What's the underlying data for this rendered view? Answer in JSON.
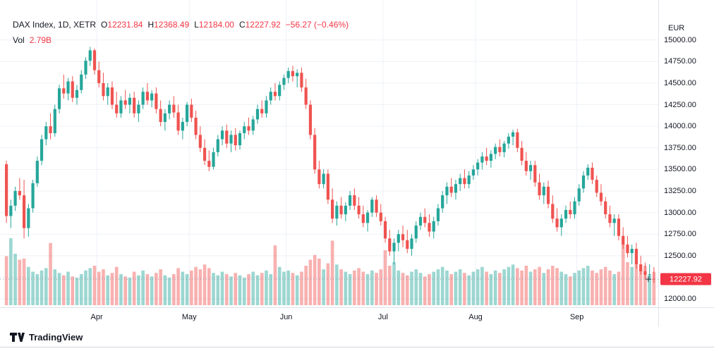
{
  "legend": {
    "title": "DAX Index, 1D, XETR",
    "o_label": "O",
    "o": "12231.84",
    "h_label": "H",
    "h": "12368.49",
    "l_label": "L",
    "l": "12184.00",
    "c_label": "C",
    "c": "12227.92",
    "change": "−56.27 (−0.46%)",
    "vol_label": "Vol",
    "vol": "2.79B"
  },
  "price_axis": {
    "currency": "EUR",
    "labels": [
      "15000.00",
      "14750.00",
      "14500.00",
      "14250.00",
      "14000.00",
      "13750.00",
      "13500.00",
      "13250.00",
      "13000.00",
      "12750.00",
      "12500.00",
      "12000.00"
    ],
    "last_price_badge": "12227.92"
  },
  "time_axis": {
    "months": [
      {
        "label": "Apr",
        "index": 21
      },
      {
        "label": "May",
        "index": 42
      },
      {
        "label": "Jun",
        "index": 64
      },
      {
        "label": "Jul",
        "index": 86
      },
      {
        "label": "Aug",
        "index": 107
      },
      {
        "label": "Sep",
        "index": 130
      }
    ]
  },
  "footer": {
    "brand": "TradingView"
  },
  "colors": {
    "up": "#26a69a",
    "down": "#ef5350",
    "text": "#131722",
    "value_red": "#f23645",
    "grid": "#eef1f7",
    "axis_border": "#e0e3eb",
    "badge_bg": "#f23645",
    "last_price_line": "#9598a1",
    "marker": "#2a2e39"
  },
  "chart_data": {
    "type": "candlestick",
    "title": "DAX Index, 1D, XETR",
    "ylabel": "EUR",
    "grid_step": 250,
    "price_range": [
      11935,
      15300
    ],
    "last_close": 12227.92,
    "last_volume_label": "2.79B",
    "ohlc": [
      [
        13560,
        13600,
        12880,
        12960
      ],
      [
        12960,
        13150,
        12820,
        13080
      ],
      [
        13080,
        13300,
        13020,
        13250
      ],
      [
        13250,
        13400,
        13150,
        13200
      ],
      [
        13200,
        13380,
        12700,
        12820
      ],
      [
        12820,
        13100,
        12720,
        13050
      ],
      [
        13050,
        13380,
        13000,
        13340
      ],
      [
        13340,
        13650,
        13300,
        13600
      ],
      [
        13600,
        13900,
        13550,
        13850
      ],
      [
        13850,
        14050,
        13780,
        14000
      ],
      [
        14000,
        14150,
        13850,
        13920
      ],
      [
        13920,
        14250,
        13880,
        14200
      ],
      [
        14200,
        14480,
        14150,
        14440
      ],
      [
        14440,
        14600,
        14320,
        14380
      ],
      [
        14380,
        14560,
        14300,
        14520
      ],
      [
        14520,
        14580,
        14280,
        14330
      ],
      [
        14330,
        14480,
        14250,
        14420
      ],
      [
        14420,
        14650,
        14380,
        14600
      ],
      [
        14600,
        14800,
        14550,
        14760
      ],
      [
        14760,
        14920,
        14700,
        14880
      ],
      [
        14880,
        14900,
        14600,
        14650
      ],
      [
        14650,
        14750,
        14450,
        14500
      ],
      [
        14500,
        14620,
        14300,
        14350
      ],
      [
        14350,
        14500,
        14250,
        14450
      ],
      [
        14450,
        14520,
        14200,
        14250
      ],
      [
        14250,
        14400,
        14100,
        14150
      ],
      [
        14150,
        14350,
        14100,
        14300
      ],
      [
        14300,
        14420,
        14200,
        14250
      ],
      [
        14250,
        14380,
        14150,
        14330
      ],
      [
        14330,
        14400,
        14100,
        14150
      ],
      [
        14150,
        14300,
        14050,
        14250
      ],
      [
        14250,
        14450,
        14200,
        14400
      ],
      [
        14400,
        14500,
        14250,
        14300
      ],
      [
        14300,
        14420,
        14220,
        14380
      ],
      [
        14380,
        14450,
        14150,
        14200
      ],
      [
        14200,
        14300,
        14000,
        14050
      ],
      [
        14050,
        14200,
        13950,
        14150
      ],
      [
        14150,
        14300,
        14080,
        14250
      ],
      [
        14250,
        14350,
        14100,
        14160
      ],
      [
        14160,
        14250,
        13900,
        13950
      ],
      [
        13950,
        14100,
        13850,
        14050
      ],
      [
        14050,
        14280,
        14000,
        14250
      ],
      [
        14250,
        14320,
        14050,
        14100
      ],
      [
        14100,
        14180,
        13850,
        13900
      ],
      [
        13900,
        14000,
        13700,
        13750
      ],
      [
        13750,
        13850,
        13550,
        13600
      ],
      [
        13600,
        13720,
        13480,
        13530
      ],
      [
        13530,
        13750,
        13500,
        13700
      ],
      [
        13700,
        13900,
        13650,
        13850
      ],
      [
        13850,
        14000,
        13780,
        13950
      ],
      [
        13950,
        14020,
        13750,
        13800
      ],
      [
        13800,
        13950,
        13700,
        13900
      ],
      [
        13900,
        13980,
        13720,
        13780
      ],
      [
        13780,
        13950,
        13730,
        13920
      ],
      [
        13920,
        14050,
        13850,
        14000
      ],
      [
        14000,
        14100,
        13900,
        13950
      ],
      [
        13950,
        14120,
        13900,
        14080
      ],
      [
        14080,
        14250,
        14030,
        14200
      ],
      [
        14200,
        14300,
        14100,
        14150
      ],
      [
        14150,
        14350,
        14100,
        14300
      ],
      [
        14300,
        14450,
        14250,
        14400
      ],
      [
        14400,
        14500,
        14300,
        14350
      ],
      [
        14350,
        14520,
        14300,
        14480
      ],
      [
        14480,
        14600,
        14420,
        14560
      ],
      [
        14560,
        14680,
        14500,
        14640
      ],
      [
        14640,
        14700,
        14520,
        14580
      ],
      [
        14580,
        14660,
        14450,
        14620
      ],
      [
        14620,
        14680,
        14400,
        14450
      ],
      [
        14450,
        14550,
        14200,
        14250
      ],
      [
        14250,
        14300,
        13850,
        13900
      ],
      [
        13900,
        13980,
        13450,
        13500
      ],
      [
        13500,
        13600,
        13280,
        13330
      ],
      [
        13330,
        13500,
        13280,
        13450
      ],
      [
        13450,
        13500,
        13100,
        13150
      ],
      [
        13150,
        13280,
        12880,
        12930
      ],
      [
        12930,
        13130,
        12850,
        13080
      ],
      [
        13080,
        13180,
        12930,
        12980
      ],
      [
        12980,
        13120,
        12900,
        13080
      ],
      [
        13080,
        13250,
        13030,
        13200
      ],
      [
        13200,
        13280,
        13030,
        13080
      ],
      [
        13080,
        13180,
        12930,
        12980
      ],
      [
        12980,
        13080,
        12830,
        12880
      ],
      [
        12880,
        13030,
        12780,
        13000
      ],
      [
        13000,
        13180,
        12950,
        13150
      ],
      [
        13150,
        13200,
        12950,
        13000
      ],
      [
        13000,
        13100,
        12850,
        12900
      ],
      [
        12900,
        12950,
        12650,
        12700
      ],
      [
        12700,
        12800,
        12500,
        12550
      ],
      [
        12550,
        12700,
        12400,
        12650
      ],
      [
        12650,
        12800,
        12550,
        12750
      ],
      [
        12750,
        12850,
        12600,
        12680
      ],
      [
        12680,
        12800,
        12530,
        12580
      ],
      [
        12580,
        12750,
        12500,
        12700
      ],
      [
        12700,
        12900,
        12650,
        12850
      ],
      [
        12850,
        13000,
        12800,
        12950
      ],
      [
        12950,
        13050,
        12830,
        12880
      ],
      [
        12880,
        12980,
        12720,
        12780
      ],
      [
        12780,
        12950,
        12700,
        12900
      ],
      [
        12900,
        13100,
        12850,
        13050
      ],
      [
        13050,
        13250,
        13000,
        13200
      ],
      [
        13200,
        13350,
        13100,
        13300
      ],
      [
        13300,
        13400,
        13180,
        13230
      ],
      [
        13230,
        13380,
        13150,
        13330
      ],
      [
        13330,
        13450,
        13250,
        13400
      ],
      [
        13400,
        13500,
        13280,
        13330
      ],
      [
        13330,
        13480,
        13280,
        13430
      ],
      [
        13430,
        13550,
        13380,
        13500
      ],
      [
        13500,
        13620,
        13430,
        13580
      ],
      [
        13580,
        13700,
        13500,
        13650
      ],
      [
        13650,
        13750,
        13550,
        13600
      ],
      [
        13600,
        13720,
        13520,
        13680
      ],
      [
        13680,
        13800,
        13620,
        13760
      ],
      [
        13760,
        13850,
        13650,
        13700
      ],
      [
        13700,
        13830,
        13640,
        13800
      ],
      [
        13800,
        13920,
        13740,
        13880
      ],
      [
        13880,
        13960,
        13780,
        13930
      ],
      [
        13930,
        13970,
        13700,
        13750
      ],
      [
        13750,
        13830,
        13550,
        13600
      ],
      [
        13600,
        13700,
        13430,
        13480
      ],
      [
        13480,
        13600,
        13380,
        13550
      ],
      [
        13550,
        13600,
        13300,
        13350
      ],
      [
        13350,
        13450,
        13150,
        13200
      ],
      [
        13200,
        13350,
        13100,
        13300
      ],
      [
        13300,
        13370,
        13050,
        13100
      ],
      [
        13100,
        13200,
        12880,
        12930
      ],
      [
        12930,
        13050,
        12780,
        12830
      ],
      [
        12830,
        12980,
        12730,
        12930
      ],
      [
        12930,
        13080,
        12880,
        13030
      ],
      [
        13030,
        13130,
        12930,
        12980
      ],
      [
        12980,
        13180,
        12930,
        13130
      ],
      [
        13130,
        13330,
        13080,
        13280
      ],
      [
        13280,
        13480,
        13230,
        13430
      ],
      [
        13430,
        13560,
        13380,
        13520
      ],
      [
        13520,
        13580,
        13330,
        13380
      ],
      [
        13380,
        13430,
        13180,
        13230
      ],
      [
        13230,
        13330,
        13080,
        13130
      ],
      [
        13130,
        13180,
        12930,
        12980
      ],
      [
        12980,
        13080,
        12830,
        12880
      ],
      [
        12880,
        12980,
        12730,
        12930
      ],
      [
        12930,
        12980,
        12680,
        12730
      ],
      [
        12730,
        12830,
        12580,
        12630
      ],
      [
        12630,
        12730,
        12480,
        12530
      ],
      [
        12530,
        12630,
        12400,
        12580
      ],
      [
        12580,
        12650,
        12350,
        12400
      ],
      [
        12400,
        12500,
        12280,
        12320
      ],
      [
        12320,
        12420,
        12230,
        12280
      ],
      [
        12280,
        12400,
        12220,
        12284.19
      ],
      [
        12231.84,
        12368.49,
        12184.0,
        12227.92
      ]
    ],
    "volume_billions": [
      4.1,
      5.6,
      4.3,
      3.8,
      3.9,
      3.2,
      2.8,
      2.6,
      2.9,
      3.1,
      5.2,
      3.0,
      2.7,
      2.5,
      2.8,
      2.4,
      2.3,
      2.6,
      2.9,
      3.1,
      3.3,
      2.8,
      3.0,
      2.5,
      2.7,
      3.2,
      2.6,
      2.4,
      2.3,
      2.8,
      2.5,
      2.9,
      2.6,
      2.4,
      2.7,
      3.0,
      2.5,
      2.3,
      2.6,
      3.1,
      2.8,
      2.6,
      2.9,
      3.2,
      3.0,
      3.4,
      3.1,
      2.7,
      2.5,
      2.8,
      2.6,
      2.4,
      2.7,
      2.5,
      2.3,
      2.6,
      2.8,
      2.5,
      2.7,
      2.9,
      2.6,
      5.0,
      3.2,
      2.8,
      2.9,
      2.7,
      2.5,
      2.8,
      3.3,
      3.8,
      4.2,
      3.9,
      3.0,
      3.5,
      5.4,
      3.4,
      3.0,
      2.8,
      2.6,
      2.9,
      3.1,
      2.8,
      2.6,
      2.9,
      2.7,
      3.0,
      4.6,
      3.3,
      3.6,
      2.9,
      2.7,
      2.5,
      2.8,
      3.0,
      2.7,
      2.4,
      2.6,
      2.8,
      3.0,
      3.2,
      2.9,
      2.6,
      2.8,
      3.0,
      2.7,
      2.5,
      2.8,
      3.0,
      3.2,
      2.8,
      2.6,
      2.9,
      2.7,
      3.0,
      3.2,
      3.4,
      3.1,
      2.9,
      3.3,
      2.8,
      3.0,
      3.2,
      2.7,
      3.0,
      3.3,
      3.1,
      2.8,
      2.6,
      2.4,
      2.7,
      2.9,
      3.1,
      3.3,
      2.9,
      2.7,
      3.0,
      3.2,
      2.9,
      2.6,
      2.8,
      5.1,
      3.6,
      3.2,
      3.4,
      3.0,
      3.3,
      2.5,
      2.79
    ]
  }
}
